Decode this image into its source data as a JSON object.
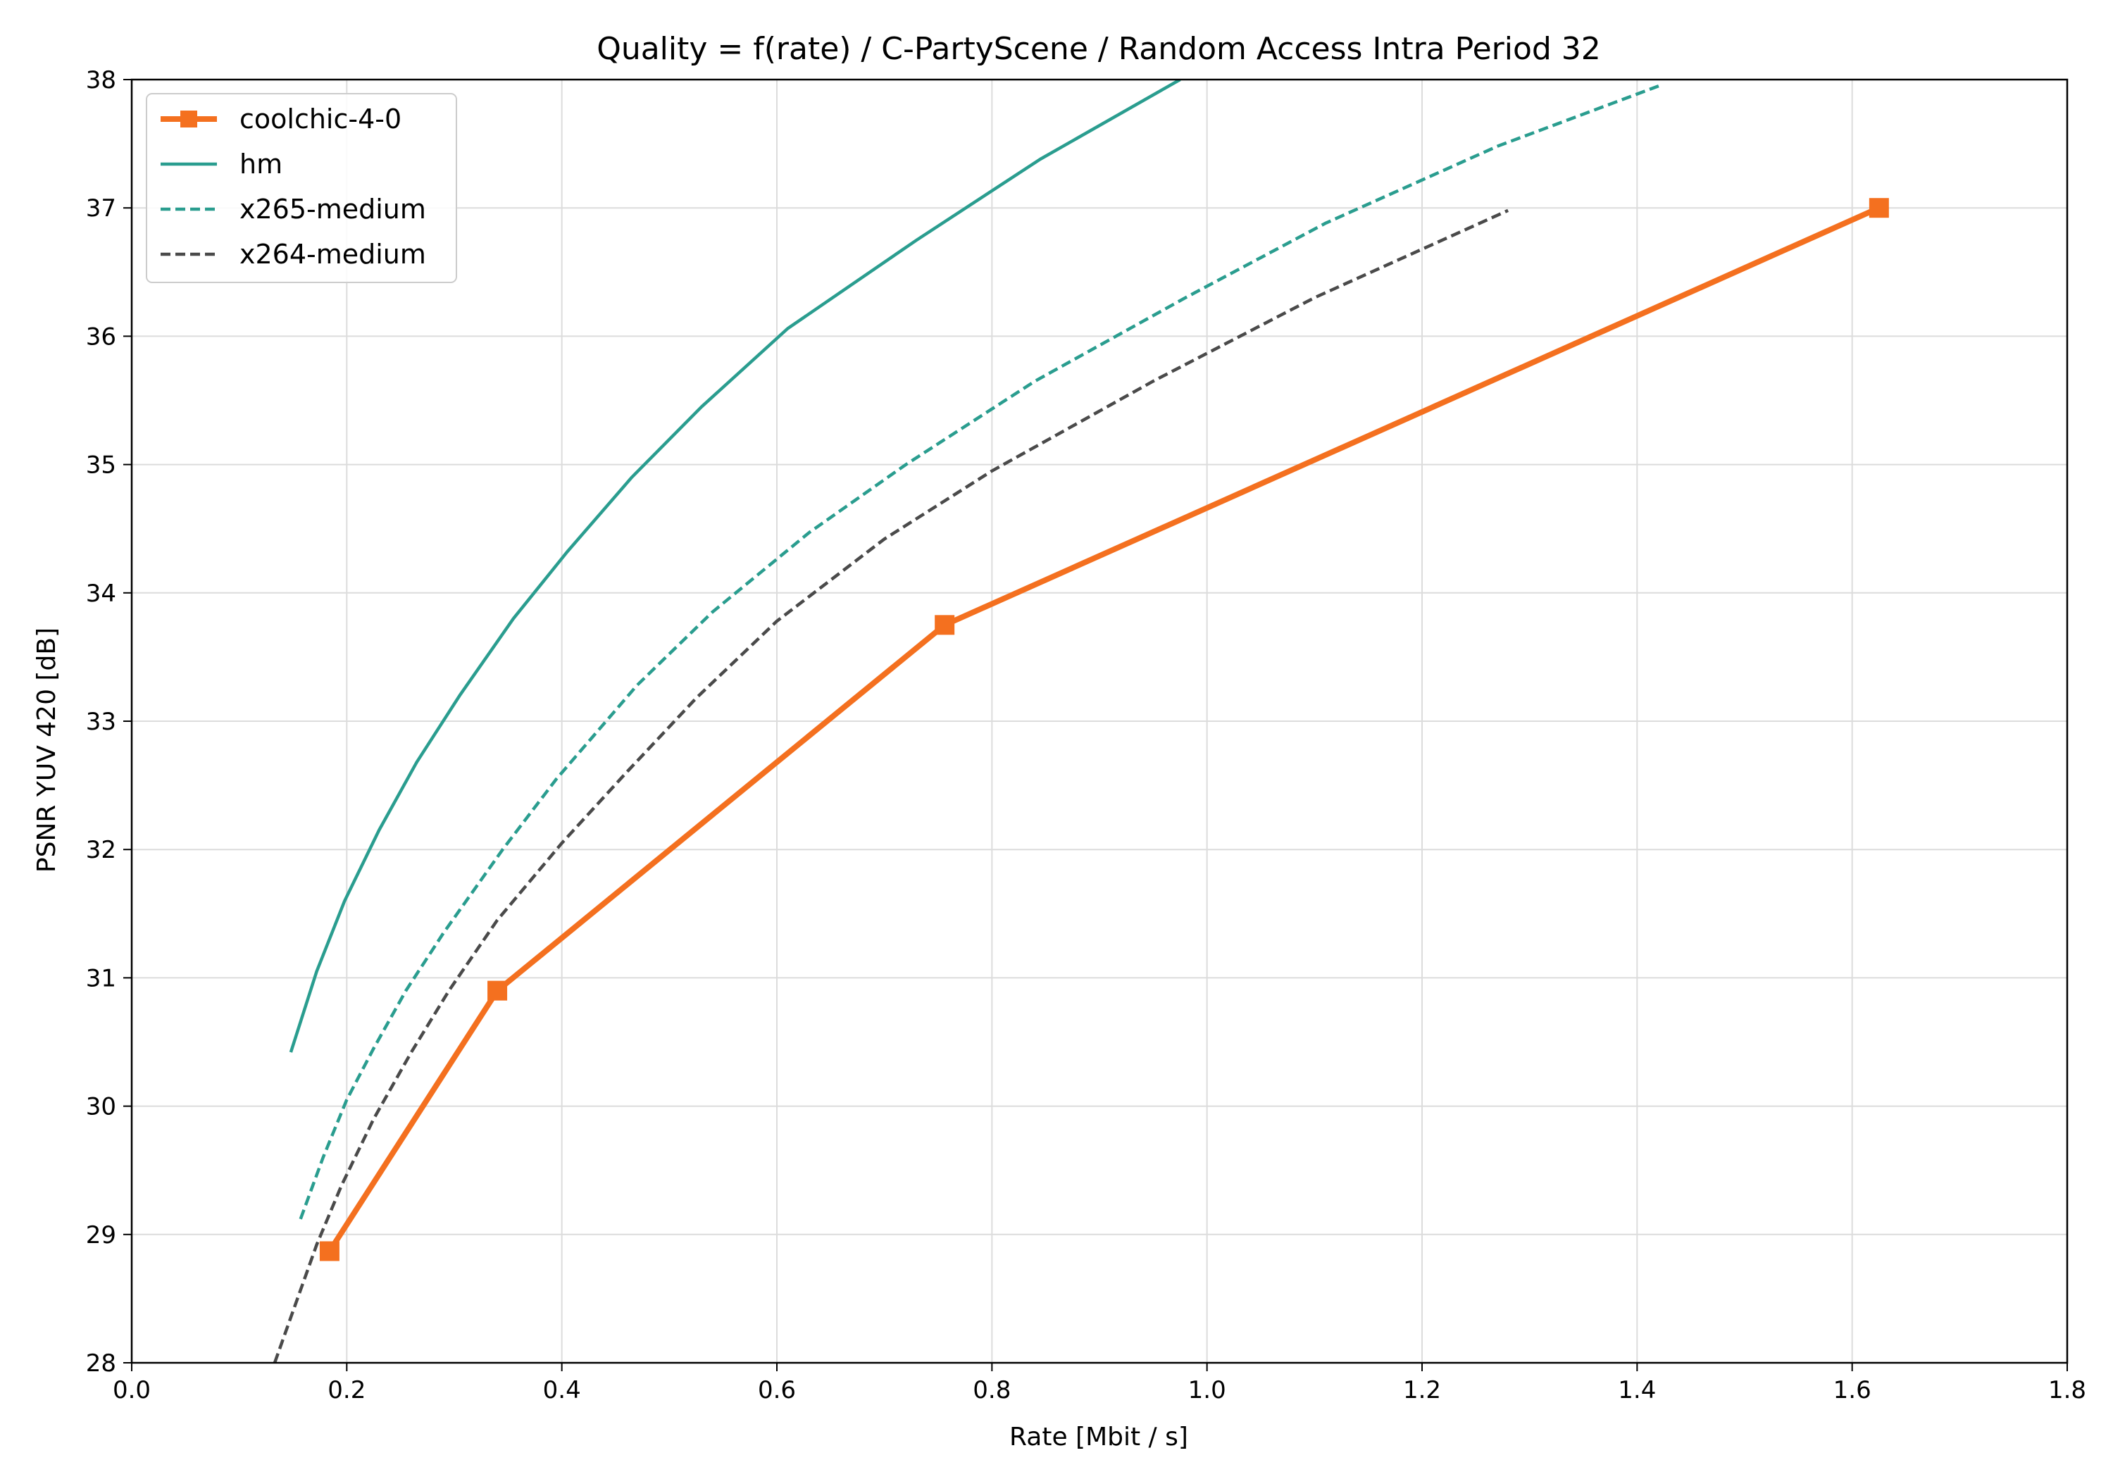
{
  "chart_data": {
    "type": "line",
    "title": "Quality = f(rate) / C-PartyScene / Random Access Intra Period 32",
    "xlabel": "Rate [Mbit / s]",
    "ylabel": "PSNR YUV 420 [dB]",
    "xlim": [
      0.0,
      1.8
    ],
    "ylim": [
      28,
      38
    ],
    "xticks": [
      "0.0",
      "0.2",
      "0.4",
      "0.6",
      "0.8",
      "1.0",
      "1.2",
      "1.4",
      "1.6",
      "1.8"
    ],
    "xtick_values": [
      0.0,
      0.2,
      0.4,
      0.6,
      0.8,
      1.0,
      1.2,
      1.4,
      1.6,
      1.8
    ],
    "yticks": [
      "28",
      "29",
      "30",
      "31",
      "32",
      "33",
      "34",
      "35",
      "36",
      "37",
      "38"
    ],
    "ytick_values": [
      28,
      29,
      30,
      31,
      32,
      33,
      34,
      35,
      36,
      37,
      38
    ],
    "grid": true,
    "legend_position": "top-left",
    "series": [
      {
        "name": "coolchic-4-0",
        "color": "#f4701f",
        "style": "solid-thick",
        "marker": "square",
        "x": [
          0.184,
          0.34,
          0.756,
          1.625
        ],
        "y": [
          28.87,
          30.9,
          33.75,
          37.0
        ]
      },
      {
        "name": "hm",
        "color": "#2a9d8f",
        "style": "solid",
        "marker": "none",
        "x": [
          0.148,
          0.172,
          0.198,
          0.23,
          0.265,
          0.305,
          0.355,
          0.405,
          0.465,
          0.53,
          0.61,
          0.73,
          0.845,
          0.975
        ],
        "y": [
          30.42,
          31.05,
          31.6,
          32.15,
          32.68,
          33.2,
          33.8,
          34.32,
          34.9,
          35.45,
          36.06,
          36.75,
          37.38,
          38.0
        ]
      },
      {
        "name": "x265-medium",
        "color": "#2a9d8f",
        "style": "dashed",
        "marker": "none",
        "x": [
          0.157,
          0.178,
          0.2,
          0.225,
          0.255,
          0.29,
          0.345,
          0.395,
          0.47,
          0.54,
          0.63,
          0.72,
          0.84,
          0.98,
          1.11,
          1.27,
          1.42
        ],
        "y": [
          29.12,
          29.6,
          30.05,
          30.45,
          30.9,
          31.35,
          32.0,
          32.55,
          33.28,
          33.85,
          34.47,
          35.0,
          35.65,
          36.3,
          36.88,
          37.48,
          37.95
        ]
      },
      {
        "name": "x264-medium",
        "color": "#4a4a4a",
        "style": "dashed",
        "marker": "none",
        "x": [
          0.133,
          0.152,
          0.172,
          0.195,
          0.225,
          0.26,
          0.295,
          0.34,
          0.4,
          0.46,
          0.525,
          0.6,
          0.7,
          0.8,
          0.95,
          1.1,
          1.28
        ],
        "y": [
          28.0,
          28.45,
          28.92,
          29.38,
          29.9,
          30.42,
          30.9,
          31.45,
          32.05,
          32.6,
          33.18,
          33.78,
          34.42,
          34.95,
          35.65,
          36.3,
          36.98
        ]
      }
    ]
  }
}
